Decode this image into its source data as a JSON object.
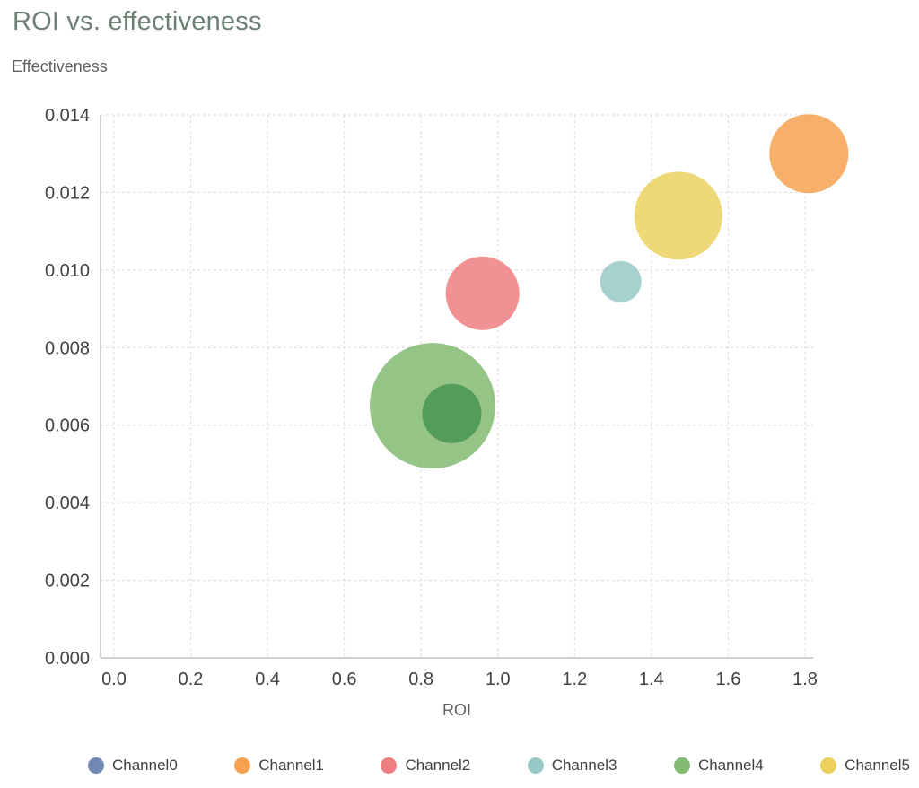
{
  "chart": {
    "title": "ROI vs. effectiveness",
    "y_axis_title": "Effectiveness",
    "x_axis_title": "ROI"
  },
  "chart_data": {
    "type": "bubble",
    "title": "ROI vs. effectiveness",
    "xlabel": "ROI",
    "ylabel": "Effectiveness",
    "xlim": [
      -0.035,
      1.821
    ],
    "ylim": [
      0,
      0.014
    ],
    "grid": "dashed",
    "legend_position": "bottom",
    "x_ticks": [
      {
        "value": 0.0,
        "label": "0.0"
      },
      {
        "value": 0.2,
        "label": "0.2"
      },
      {
        "value": 0.4,
        "label": "0.4"
      },
      {
        "value": 0.6,
        "label": "0.6"
      },
      {
        "value": 0.8,
        "label": "0.8"
      },
      {
        "value": 1.0,
        "label": "1.0"
      },
      {
        "value": 1.2,
        "label": "1.2"
      },
      {
        "value": 1.4,
        "label": "1.4"
      },
      {
        "value": 1.6,
        "label": "1.6"
      },
      {
        "value": 1.8,
        "label": "1.8"
      }
    ],
    "y_ticks": [
      {
        "value": 0.0,
        "label": "0.000"
      },
      {
        "value": 0.002,
        "label": "0.002"
      },
      {
        "value": 0.004,
        "label": "0.004"
      },
      {
        "value": 0.006,
        "label": "0.006"
      },
      {
        "value": 0.008,
        "label": "0.008"
      },
      {
        "value": 0.01,
        "label": "0.010"
      },
      {
        "value": 0.012,
        "label": "0.012"
      },
      {
        "value": 0.014,
        "label": "0.014"
      }
    ],
    "bubbles": [
      {
        "series": "Channel1",
        "x": 1.81,
        "y": 0.013,
        "r": 44,
        "color": "#f6a14f",
        "opacity": 0.85
      },
      {
        "series": "Channel5",
        "x": 1.47,
        "y": 0.0114,
        "r": 49,
        "color": "#ecd15f",
        "opacity": 0.85
      },
      {
        "series": "Channel3",
        "x": 1.32,
        "y": 0.0097,
        "r": 23,
        "color": "#97c9c7",
        "opacity": 0.85
      },
      {
        "series": "Channel2",
        "x": 0.96,
        "y": 0.0094,
        "r": 41,
        "color": "#ee7e80",
        "opacity": 0.85
      },
      {
        "series": "Channel4",
        "x": 0.83,
        "y": 0.0065,
        "r": 70,
        "color": "#83ba72",
        "opacity": 0.85
      },
      {
        "series": "Channel4",
        "x": 0.88,
        "y": 0.0063,
        "r": 33,
        "color": "#4f9a57",
        "opacity": 0.95
      }
    ]
  },
  "legend": {
    "items": [
      {
        "label": "Channel0",
        "color": "#7188b5"
      },
      {
        "label": "Channel1",
        "color": "#f6a14f"
      },
      {
        "label": "Channel2",
        "color": "#ee7e80"
      },
      {
        "label": "Channel3",
        "color": "#97c9c7"
      },
      {
        "label": "Channel4",
        "color": "#83ba72"
      },
      {
        "label": "Channel5",
        "color": "#ecd15f"
      }
    ]
  }
}
